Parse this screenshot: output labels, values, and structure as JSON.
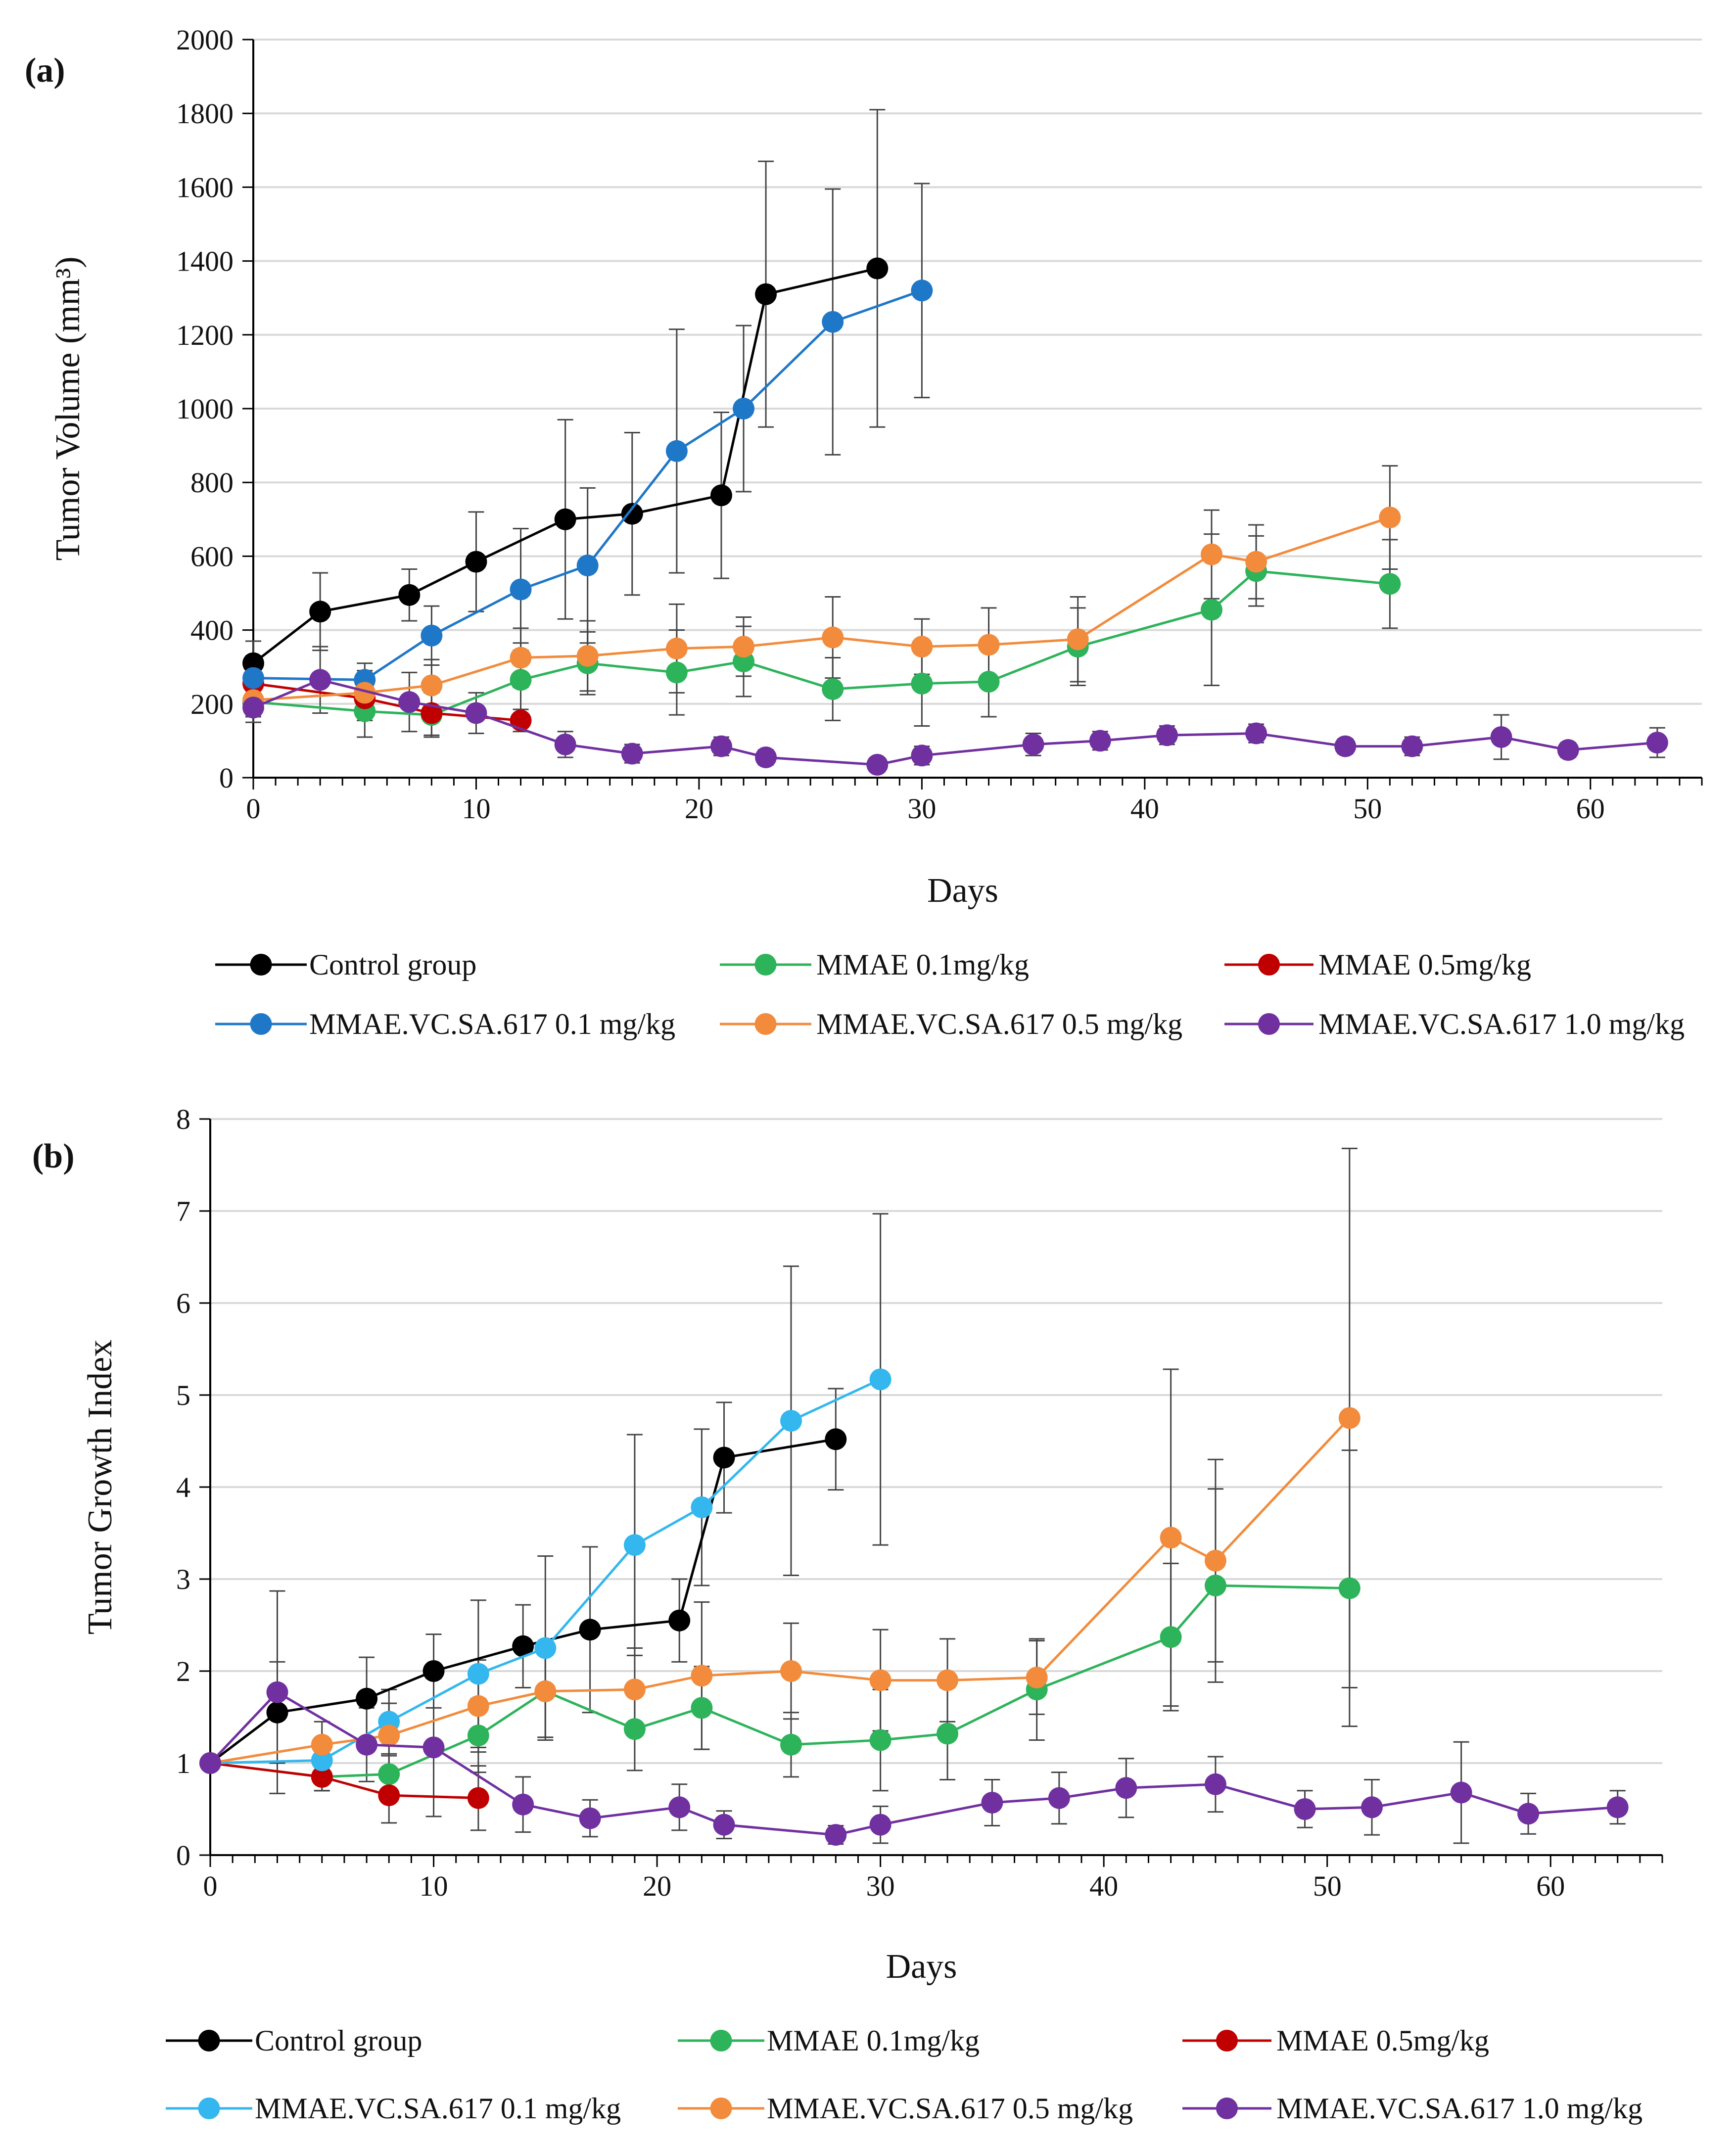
{
  "chart_data": [
    {
      "panel": "(a)",
      "type": "line",
      "xlabel": "Days",
      "ylabel": "Tumor Volume (mm³)",
      "xlim": [
        0,
        65
      ],
      "ylim": [
        0,
        2000
      ],
      "xticks": [
        0,
        10,
        20,
        30,
        40,
        50,
        60
      ],
      "yticks": [
        0,
        200,
        400,
        600,
        800,
        1000,
        1200,
        1400,
        1600,
        1800,
        2000
      ],
      "grid": true,
      "legend_position": "bottom",
      "series": [
        {
          "name": "Control group",
          "color": "#000000",
          "x": [
            0,
            3,
            7,
            10,
            14,
            17,
            21,
            23,
            28
          ],
          "y": [
            310,
            450,
            495,
            585,
            700,
            715,
            765,
            1310,
            1380
          ],
          "err": [
            60,
            105,
            70,
            135,
            270,
            220,
            225,
            360,
            430
          ]
        },
        {
          "name": "MMAE 0.1mg/kg",
          "color": "#2db35a",
          "x": [
            0,
            5,
            8,
            12,
            15,
            19,
            22,
            26,
            30,
            33,
            37,
            43,
            45,
            51
          ],
          "y": [
            205,
            180,
            170,
            265,
            310,
            285,
            315,
            240,
            255,
            260,
            355,
            455,
            560,
            525
          ],
          "err": [
            40,
            70,
            60,
            100,
            85,
            115,
            95,
            85,
            115,
            95,
            105,
            205,
            95,
            120
          ]
        },
        {
          "name": "MMAE 0.5mg/kg",
          "color": "#c00000",
          "x": [
            0,
            5,
            8,
            12
          ],
          "y": [
            255,
            215,
            175,
            155
          ],
          "err": [
            50,
            60,
            60,
            30
          ]
        },
        {
          "name": "MMAE.VC.SA.617 0.1 mg/kg",
          "color": "#1f77c8",
          "x": [
            0,
            5,
            8,
            12,
            15,
            19,
            22,
            26,
            30
          ],
          "y": [
            270,
            265,
            385,
            510,
            575,
            885,
            1000,
            1235,
            1320
          ],
          "err": [
            60,
            45,
            80,
            165,
            210,
            330,
            225,
            360,
            290
          ]
        },
        {
          "name": "MMAE.VC.SA.617 0.5 mg/kg",
          "color": "#f28b3c",
          "x": [
            0,
            5,
            8,
            12,
            15,
            19,
            22,
            26,
            30,
            33,
            37,
            43,
            45,
            51
          ],
          "y": [
            210,
            230,
            250,
            325,
            330,
            350,
            355,
            380,
            355,
            360,
            375,
            605,
            585,
            705
          ],
          "err": [
            40,
            60,
            70,
            80,
            95,
            120,
            80,
            110,
            75,
            100,
            115,
            120,
            100,
            140
          ]
        },
        {
          "name": "MMAE.VC.SA.617 1.0 mg/kg",
          "color": "#7030a0",
          "x": [
            0,
            3,
            7,
            10,
            14,
            17,
            21,
            23,
            28,
            30,
            35,
            38,
            41,
            45,
            49,
            52,
            56,
            59,
            63
          ],
          "y": [
            190,
            265,
            205,
            175,
            90,
            65,
            85,
            55,
            35,
            60,
            90,
            100,
            115,
            120,
            85,
            85,
            110,
            75,
            95
          ],
          "err": [
            40,
            90,
            80,
            55,
            35,
            25,
            25,
            20,
            15,
            25,
            30,
            25,
            25,
            25,
            20,
            25,
            60,
            20,
            40
          ]
        }
      ]
    },
    {
      "panel": "(b)",
      "type": "line",
      "xlabel": "Days",
      "ylabel": "Tumor Growth Index",
      "xlim": [
        0,
        65
      ],
      "ylim": [
        0,
        8
      ],
      "xticks": [
        0,
        10,
        20,
        30,
        40,
        50,
        60
      ],
      "yticks": [
        0,
        1,
        2,
        3,
        4,
        5,
        6,
        7,
        8
      ],
      "grid": true,
      "legend_position": "bottom",
      "series": [
        {
          "name": "Control group",
          "color": "#000000",
          "x": [
            0,
            3,
            7,
            10,
            14,
            17,
            21,
            23,
            28
          ],
          "y": [
            1.0,
            1.55,
            1.7,
            2.0,
            2.27,
            2.45,
            2.55,
            4.32,
            4.52
          ],
          "err": [
            0,
            0.55,
            0.45,
            0.4,
            0.45,
            0.9,
            0.45,
            0.6,
            0.55
          ]
        },
        {
          "name": "MMAE 0.1mg/kg",
          "color": "#2db35a",
          "x": [
            0,
            5,
            8,
            12,
            15,
            19,
            22,
            26,
            30,
            33,
            37,
            43,
            45,
            51
          ],
          "y": [
            1.0,
            0.85,
            0.88,
            1.3,
            1.78,
            1.37,
            1.6,
            1.2,
            1.25,
            1.32,
            1.8,
            2.37,
            2.93,
            2.9
          ],
          "err": [
            0,
            0.15,
            0.2,
            0.4,
            0.5,
            0.45,
            0.45,
            0.35,
            0.55,
            0.5,
            0.55,
            0.8,
            1.05,
            1.5
          ]
        },
        {
          "name": "MMAE 0.5mg/kg",
          "color": "#c00000",
          "x": [
            0,
            5,
            8,
            12
          ],
          "y": [
            1.0,
            0.85,
            0.65,
            0.62
          ],
          "err": [
            0,
            0.15,
            0.3,
            0.35
          ]
        },
        {
          "name": "MMAE.VC.SA.617 0.1 mg/kg",
          "color": "#33b7ee",
          "x": [
            0,
            5,
            8,
            12,
            15,
            19,
            22,
            26,
            30
          ],
          "y": [
            1.0,
            1.03,
            1.45,
            1.97,
            2.25,
            3.37,
            3.78,
            4.72,
            5.17
          ],
          "err": [
            0,
            0.2,
            0.35,
            0.8,
            1.0,
            1.2,
            0.85,
            1.68,
            1.8
          ]
        },
        {
          "name": "MMAE.VC.SA.617 0.5 mg/kg",
          "color": "#f28b3c",
          "x": [
            0,
            5,
            8,
            12,
            15,
            19,
            22,
            26,
            30,
            33,
            37,
            43,
            45,
            51
          ],
          "y": [
            1.0,
            1.2,
            1.3,
            1.62,
            1.78,
            1.8,
            1.95,
            2.0,
            1.9,
            1.9,
            1.93,
            3.45,
            3.2,
            4.75
          ],
          "err": [
            0,
            0.25,
            0.35,
            0.5,
            0.5,
            0.45,
            0.8,
            0.52,
            0.55,
            0.45,
            0.4,
            1.83,
            1.1,
            2.93
          ]
        },
        {
          "name": "MMAE.VC.SA.617 1.0 mg/kg",
          "color": "#7030a0",
          "x": [
            0,
            3,
            7,
            10,
            14,
            17,
            21,
            23,
            28,
            30,
            35,
            38,
            41,
            45,
            49,
            52,
            56,
            59,
            63
          ],
          "y": [
            1.0,
            1.77,
            1.2,
            1.17,
            0.55,
            0.4,
            0.52,
            0.33,
            0.22,
            0.33,
            0.57,
            0.62,
            0.73,
            0.77,
            0.5,
            0.52,
            0.68,
            0.45,
            0.52
          ],
          "err": [
            0,
            1.1,
            0.4,
            0.75,
            0.3,
            0.2,
            0.25,
            0.15,
            0.1,
            0.2,
            0.25,
            0.28,
            0.32,
            0.3,
            0.2,
            0.3,
            0.55,
            0.22,
            0.18
          ]
        }
      ]
    }
  ]
}
